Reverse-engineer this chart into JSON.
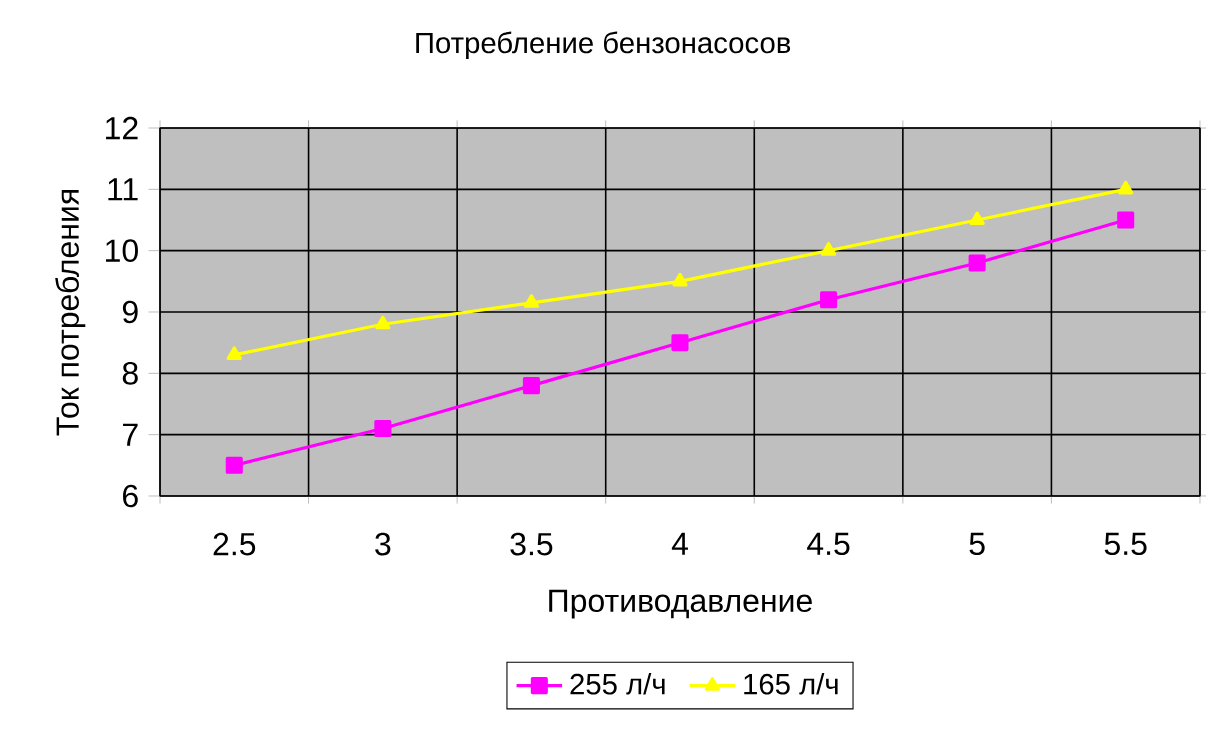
{
  "chart_data": {
    "type": "line",
    "title": "Потребление бензонасосов",
    "xlabel": "Противодавление",
    "ylabel": "Ток потребления",
    "categories": [
      "2.5",
      "3",
      "3.5",
      "4",
      "4.5",
      "5",
      "5.5"
    ],
    "series": [
      {
        "name": "255 л/ч",
        "color": "#ff00ff",
        "marker": "square",
        "values": [
          6.5,
          7.1,
          7.8,
          8.5,
          9.2,
          9.8,
          10.5
        ]
      },
      {
        "name": "165 л/ч",
        "color": "#ffff00",
        "marker": "triangle",
        "values": [
          8.3,
          8.8,
          9.15,
          9.5,
          10.0,
          10.5,
          11.0
        ]
      }
    ],
    "ylim": [
      6,
      12
    ],
    "yticks": [
      6,
      7,
      8,
      9,
      10,
      11,
      12
    ],
    "grid": true,
    "legend": "bottom",
    "line_style": "solid"
  }
}
